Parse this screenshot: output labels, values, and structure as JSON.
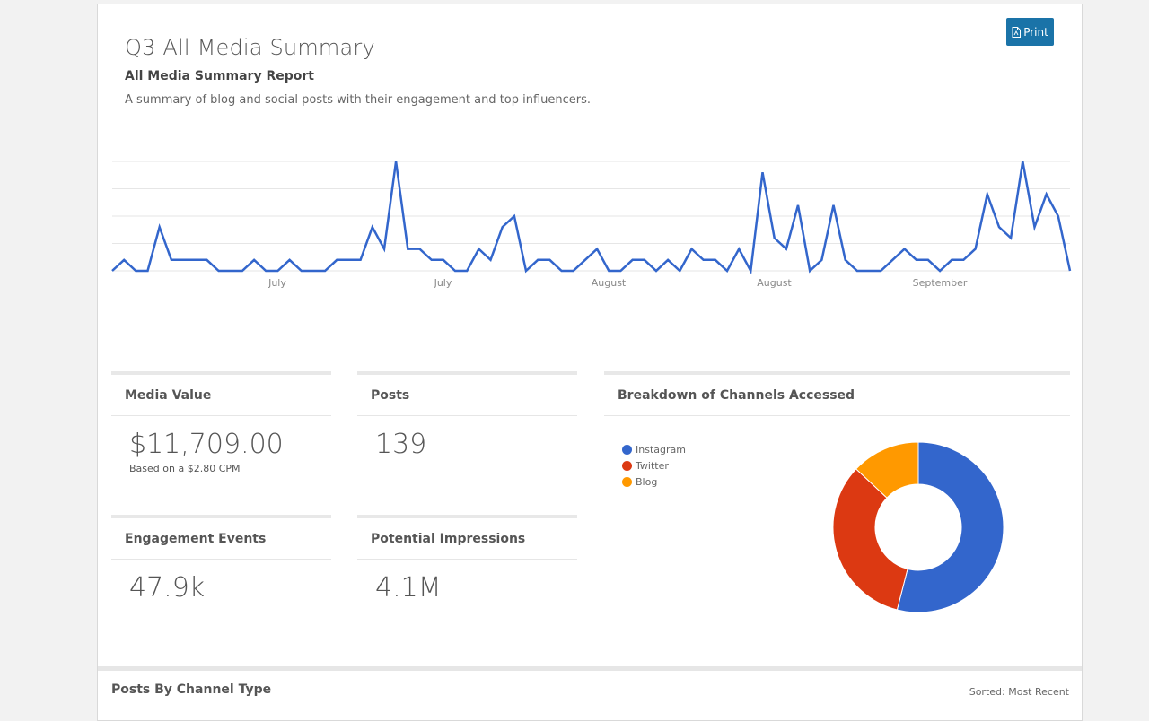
{
  "report": {
    "title": "Q3 All Media Summary",
    "subtitle": "All Media Summary Report",
    "description": "A summary of blog and social posts with their engagement and top influencers.",
    "print_label": "Print"
  },
  "chart_data": [
    {
      "type": "line",
      "title": "",
      "xlabel": "",
      "ylabel": "",
      "x_tick_labels": [
        "July",
        "July",
        "August",
        "August",
        "September"
      ],
      "ylim": [
        0,
        10
      ],
      "grid": true,
      "color": "#3366cc",
      "values": [
        0,
        1,
        0,
        0,
        4,
        1,
        1,
        1,
        1,
        0,
        0,
        0,
        1,
        0,
        0,
        1,
        0,
        0,
        0,
        1,
        1,
        1,
        4,
        2,
        10,
        2,
        2,
        1,
        1,
        0,
        0,
        2,
        1,
        4,
        5,
        0,
        1,
        1,
        0,
        0,
        1,
        2,
        0,
        0,
        1,
        1,
        0,
        1,
        0,
        2,
        1,
        1,
        0,
        2,
        0,
        9,
        3,
        2,
        6,
        0,
        1,
        6,
        1,
        0,
        0,
        0,
        1,
        2,
        1,
        1,
        0,
        1,
        1,
        2,
        7,
        4,
        3,
        10,
        4,
        7,
        5,
        0
      ]
    },
    {
      "type": "pie",
      "title": "Breakdown of Channels Accessed",
      "donut": true,
      "legend_position": "left",
      "slices": [
        {
          "name": "Instagram",
          "value": 54,
          "color": "#3366cc"
        },
        {
          "name": "Twitter",
          "value": 33,
          "color": "#dc3912"
        },
        {
          "name": "Blog",
          "value": 13,
          "color": "#ff9900"
        }
      ]
    }
  ],
  "stats": {
    "media_value": {
      "label": "Media Value",
      "value": "$11,709.00",
      "note": "Based on a $2.80 CPM"
    },
    "posts": {
      "label": "Posts",
      "value": "139"
    },
    "engagement": {
      "label": "Engagement Events",
      "value": "47.9k"
    },
    "impressions": {
      "label": "Potential Impressions",
      "value": "4.1M"
    }
  },
  "channels": {
    "title": "Breakdown of Channels Accessed",
    "legend": [
      "Instagram",
      "Twitter",
      "Blog"
    ]
  },
  "posts_section": {
    "title": "Posts By Channel Type",
    "sort_label": "Sorted: Most Recent"
  },
  "colors": {
    "accent": "#1a73a8",
    "line": "#3366cc",
    "instagram": "#3366cc",
    "twitter": "#dc3912",
    "blog": "#ff9900"
  },
  "icons": {
    "print": "pdf-file-icon"
  }
}
